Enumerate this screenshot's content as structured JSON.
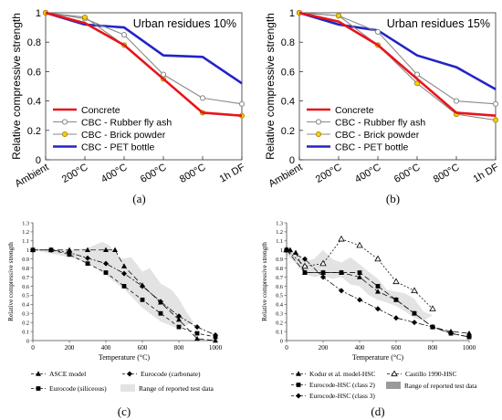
{
  "chart_data": [
    {
      "panel_label": "(a)",
      "type": "line",
      "title": "Urban residues 10%",
      "ylabel": "Relative compressive strength",
      "xlabel": "",
      "categories": [
        "Ambient",
        "200°C",
        "400°C",
        "600°C",
        "800°C",
        "1h DF"
      ],
      "ylim": [
        0,
        1
      ],
      "yticks": [
        "0",
        "0.2",
        "0.4",
        "0.6",
        "0.8",
        "1"
      ],
      "legend_position": "lower-left",
      "series": [
        {
          "name": "Concrete",
          "color": "#e8141a",
          "marker": "none",
          "values": [
            1.0,
            0.93,
            0.78,
            0.55,
            0.32,
            0.3
          ]
        },
        {
          "name": "CBC - Rubber fly ash",
          "color": "#8a8a8a",
          "marker": "circle-white",
          "values": [
            1.0,
            0.96,
            0.85,
            0.58,
            0.42,
            0.38
          ]
        },
        {
          "name": "CBC - Brick powder",
          "color": "#8a8a8a",
          "marker": "circle-yellow",
          "values": [
            1.0,
            0.97,
            0.78,
            0.55,
            0.32,
            0.3
          ]
        },
        {
          "name": "CBC - PET bottle",
          "color": "#2323c8",
          "marker": "none",
          "values": [
            1.0,
            0.92,
            0.9,
            0.71,
            0.7,
            0.52
          ]
        }
      ]
    },
    {
      "panel_label": "(b)",
      "type": "line",
      "title": "Urban residues 15%",
      "ylabel": "Relative compressive strength",
      "xlabel": "",
      "categories": [
        "Ambient",
        "200°C",
        "400°C",
        "600°C",
        "800°C",
        "1h DF"
      ],
      "ylim": [
        0,
        1
      ],
      "yticks": [
        "0",
        "0.2",
        "0.4",
        "0.6",
        "0.8",
        "1"
      ],
      "legend_position": "lower-left",
      "series": [
        {
          "name": "Concrete",
          "color": "#e8141a",
          "marker": "none",
          "values": [
            1.0,
            0.94,
            0.78,
            0.55,
            0.32,
            0.3
          ]
        },
        {
          "name": "CBC - Rubber fly ash",
          "color": "#8a8a8a",
          "marker": "circle-white",
          "values": [
            1.0,
            0.98,
            0.87,
            0.58,
            0.4,
            0.38
          ]
        },
        {
          "name": "CBC - Brick powder",
          "color": "#8a8a8a",
          "marker": "circle-yellow",
          "values": [
            1.0,
            0.98,
            0.78,
            0.52,
            0.31,
            0.27
          ]
        },
        {
          "name": "CBC - PET bottle",
          "color": "#2323c8",
          "marker": "none",
          "values": [
            1.0,
            0.92,
            0.88,
            0.71,
            0.63,
            0.48
          ]
        }
      ]
    },
    {
      "panel_label": "(c)",
      "type": "line",
      "title": "",
      "ylabel": "Relative compressive strength",
      "xlabel": "Temperature (°C)",
      "xlim": [
        0,
        1000
      ],
      "ylim": [
        0,
        1.3
      ],
      "xticks": [
        0,
        200,
        400,
        600,
        800,
        1000
      ],
      "yticks": [
        "0",
        "0.1",
        "0.2",
        "0.3",
        "0.4",
        "0.5",
        "0.6",
        "0.7",
        "0.8",
        "0.9",
        "1",
        "1.1",
        "1.2",
        "1.3"
      ],
      "band_label": "Range of reported test data",
      "band_upper": [
        [
          0,
          1.0
        ],
        [
          100,
          1.01
        ],
        [
          200,
          1.0
        ],
        [
          300,
          1.02
        ],
        [
          380,
          1.09
        ],
        [
          420,
          1.05
        ],
        [
          480,
          0.9
        ],
        [
          540,
          0.92
        ],
        [
          600,
          0.76
        ],
        [
          640,
          0.8
        ],
        [
          700,
          0.63
        ],
        [
          760,
          0.56
        ],
        [
          800,
          0.46
        ],
        [
          840,
          0.32
        ],
        [
          880,
          0.2
        ]
      ],
      "band_lower": [
        [
          880,
          0.2
        ],
        [
          800,
          0.13
        ],
        [
          700,
          0.21
        ],
        [
          600,
          0.36
        ],
        [
          500,
          0.57
        ],
        [
          400,
          0.72
        ],
        [
          300,
          0.86
        ],
        [
          200,
          0.92
        ],
        [
          100,
          0.96
        ],
        [
          0,
          1.0
        ]
      ],
      "series": [
        {
          "name": "ASCE model",
          "marker": "triangle",
          "dash": "6,3",
          "x": [
            0,
            100,
            200,
            300,
            400,
            450,
            500,
            600,
            700,
            800,
            900,
            1000
          ],
          "y": [
            1.0,
            1.0,
            1.0,
            1.0,
            1.0,
            1.0,
            0.82,
            0.61,
            0.42,
            0.23,
            0.02,
            0.0
          ]
        },
        {
          "name": "Eurocode (siliceous)",
          "marker": "square",
          "dash": "4,3",
          "x": [
            0,
            100,
            200,
            300,
            400,
            500,
            600,
            700,
            800,
            900,
            1000
          ],
          "y": [
            1.0,
            1.0,
            0.95,
            0.85,
            0.75,
            0.6,
            0.45,
            0.3,
            0.15,
            0.08,
            0.04
          ]
        },
        {
          "name": "Eurocode (carbonate)",
          "marker": "diamond",
          "dash": "6,2,2,2",
          "x": [
            0,
            100,
            200,
            300,
            400,
            500,
            600,
            700,
            800,
            900,
            1000
          ],
          "y": [
            1.0,
            1.0,
            0.97,
            0.91,
            0.85,
            0.74,
            0.6,
            0.43,
            0.27,
            0.15,
            0.06
          ]
        }
      ]
    },
    {
      "panel_label": "(d)",
      "type": "line",
      "title": "",
      "ylabel": "Relative compressive strength",
      "xlabel": "Temperature (°C)",
      "xlim": [
        0,
        1000
      ],
      "ylim": [
        0,
        1.3
      ],
      "xticks": [
        0,
        200,
        400,
        600,
        800,
        1000
      ],
      "yticks": [
        "0",
        "0.1",
        "0.2",
        "0.3",
        "0.4",
        "0.5",
        "0.6",
        "0.7",
        "0.8",
        "0.9",
        "1",
        "1.1",
        "1.2",
        "1.3"
      ],
      "band_label": "Range of reported test data",
      "band_upper": [
        [
          0,
          1.0
        ],
        [
          50,
          0.97
        ],
        [
          100,
          0.88
        ],
        [
          150,
          0.9
        ],
        [
          200,
          1.0
        ],
        [
          250,
          0.9
        ],
        [
          300,
          0.86
        ],
        [
          350,
          0.92
        ],
        [
          400,
          0.84
        ],
        [
          450,
          0.76
        ],
        [
          500,
          0.68
        ],
        [
          550,
          0.56
        ],
        [
          600,
          0.54
        ],
        [
          650,
          0.52
        ],
        [
          700,
          0.46
        ],
        [
          750,
          0.32
        ],
        [
          800,
          0.28
        ]
      ],
      "band_lower": [
        [
          800,
          0.28
        ],
        [
          750,
          0.22
        ],
        [
          700,
          0.25
        ],
        [
          650,
          0.32
        ],
        [
          600,
          0.38
        ],
        [
          550,
          0.42
        ],
        [
          500,
          0.45
        ],
        [
          450,
          0.5
        ],
        [
          400,
          0.6
        ],
        [
          350,
          0.62
        ],
        [
          300,
          0.7
        ],
        [
          250,
          0.68
        ],
        [
          200,
          0.72
        ],
        [
          150,
          0.7
        ],
        [
          100,
          0.74
        ],
        [
          50,
          0.85
        ],
        [
          0,
          0.95
        ]
      ],
      "series": [
        {
          "name": "Kodur et al. model-HSC",
          "marker": "triangle",
          "dash": "6,3",
          "x": [
            0,
            20,
            50,
            100,
            200,
            300,
            400,
            500,
            600,
            700,
            800,
            900,
            1000
          ],
          "y": [
            1.0,
            1.0,
            0.97,
            0.75,
            0.75,
            0.75,
            0.7,
            0.54,
            0.45,
            0.3,
            0.15,
            0.1,
            0.08
          ]
        },
        {
          "name": "Castillo 1990-HSC",
          "marker": "triangle-open",
          "dash": "2,2",
          "x": [
            0,
            100,
            200,
            300,
            400,
            500,
            600,
            700,
            800
          ],
          "y": [
            1.0,
            0.82,
            0.85,
            1.12,
            1.05,
            0.9,
            0.65,
            0.55,
            0.35
          ]
        },
        {
          "name": "Eurocode-HSC (class 2)",
          "marker": "square",
          "dash": "6,3",
          "x": [
            0,
            100,
            200,
            300,
            400,
            500,
            600,
            700,
            800,
            900,
            1000
          ],
          "y": [
            1.0,
            0.75,
            0.75,
            0.75,
            0.75,
            0.6,
            0.45,
            0.3,
            0.15,
            0.08,
            0.04
          ]
        },
        {
          "name": "Eurocode-HSC (class 3)",
          "marker": "diamond",
          "dash": "6,2,2,2",
          "x": [
            0,
            100,
            200,
            300,
            400,
            500,
            600,
            700,
            800,
            900,
            1000
          ],
          "y": [
            1.0,
            0.9,
            0.7,
            0.55,
            0.45,
            0.35,
            0.25,
            0.2,
            0.15,
            0.08,
            0.04
          ]
        }
      ]
    }
  ]
}
